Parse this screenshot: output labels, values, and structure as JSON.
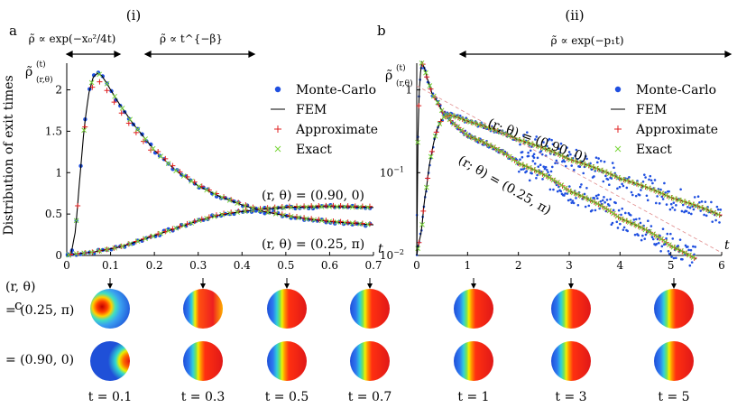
{
  "figure": {
    "panel_i": "(i)",
    "panel_ii": "(ii)",
    "label_a": "a",
    "label_b": "b",
    "label_c": "c",
    "regime_short": "ρ̃ ∝ exp(−x₀²/4t)",
    "regime_power": "ρ̃ ∝ t^{−β}",
    "regime_exp": "ρ̃ ∝ exp(−p₁t)",
    "ylabel_text": "Distribution of exit times",
    "ylabel_sym": "ρ̃",
    "ylabel_sup": "(t)",
    "ylabel_sub": "(r,θ)",
    "xlabel_t": "t",
    "annot_a1": "(r, θ) = (0.90, 0)",
    "annot_a2": "(r, θ) = (0.25, π)",
    "annot_b1": "(r; θ) = (0.90, 0)",
    "annot_b2": "(r; θ) = (0.25, π)",
    "row_header": "(r, θ)",
    "row1": "= (0.25, π)",
    "row2": "= (0.90, 0)"
  },
  "legend": {
    "items": [
      {
        "name": "Monte-Carlo",
        "color": "#1f4fe0",
        "marker": "dot"
      },
      {
        "name": "FEM",
        "color": "#000000",
        "marker": "line"
      },
      {
        "name": "Approximate",
        "color": "#e02020",
        "marker": "plus"
      },
      {
        "name": "Exact",
        "color": "#7ad63a",
        "marker": "cross"
      }
    ]
  },
  "chart_data": [
    {
      "type": "line",
      "title": "(i)",
      "xlabel": "t",
      "ylabel": "Distribution of exit times",
      "xlim": [
        0,
        0.7
      ],
      "ylim": [
        0,
        2.3
      ],
      "xticks": [
        "0",
        "0.1",
        "0.2",
        "0.3",
        "0.4",
        "0.5",
        "0.6",
        "0.7"
      ],
      "yticks": [
        "0",
        "0.5",
        "1",
        "1.5",
        "2"
      ],
      "series": [
        {
          "name": "(r, θ) = (0.90, 0)",
          "x": [
            0,
            0.02,
            0.04,
            0.06,
            0.08,
            0.1,
            0.12,
            0.15,
            0.2,
            0.25,
            0.3,
            0.35,
            0.4,
            0.45,
            0.5,
            0.55,
            0.6,
            0.65,
            0.7
          ],
          "values": [
            0,
            0.02,
            0.03,
            0.04,
            0.06,
            0.08,
            0.1,
            0.15,
            0.24,
            0.33,
            0.42,
            0.49,
            0.53,
            0.56,
            0.58,
            0.585,
            0.59,
            0.585,
            0.58
          ]
        },
        {
          "name": "(r, θ) = (0.25, π)",
          "x": [
            0,
            0.01,
            0.02,
            0.03,
            0.04,
            0.05,
            0.06,
            0.07,
            0.08,
            0.09,
            0.1,
            0.12,
            0.15,
            0.2,
            0.25,
            0.3,
            0.35,
            0.4,
            0.45,
            0.5,
            0.55,
            0.6,
            0.65,
            0.7
          ],
          "values": [
            0,
            0.02,
            0.3,
            0.95,
            1.55,
            1.95,
            2.15,
            2.2,
            2.17,
            2.09,
            2.0,
            1.83,
            1.6,
            1.27,
            1.02,
            0.84,
            0.71,
            0.61,
            0.53,
            0.48,
            0.44,
            0.41,
            0.39,
            0.37
          ]
        }
      ]
    },
    {
      "type": "line",
      "title": "(ii)",
      "xlabel": "t",
      "yscale": "log",
      "xlim": [
        0,
        6
      ],
      "ylim": [
        0.01,
        2
      ],
      "xticks": [
        "0",
        "1",
        "2",
        "3",
        "4",
        "5",
        "6"
      ],
      "yticks": [
        "10^-2",
        "10^-1",
        "1"
      ],
      "series": [
        {
          "name": "(r; θ) = (0.90, 0)",
          "x": [
            0,
            0.1,
            0.2,
            0.3,
            0.4,
            0.5,
            0.6,
            0.7,
            1,
            2,
            3,
            4,
            5,
            6
          ],
          "values": [
            0.01,
            0.02,
            0.07,
            0.18,
            0.33,
            0.45,
            0.5,
            0.49,
            0.42,
            0.25,
            0.145,
            0.085,
            0.05,
            0.03
          ]
        },
        {
          "name": "(r; θ) = (0.25, π)",
          "x": [
            0,
            0.03,
            0.06,
            0.1,
            0.15,
            0.2,
            0.3,
            0.5,
            0.7,
            1,
            2,
            3,
            4,
            5,
            5.5
          ],
          "values": [
            0.01,
            0.35,
            1.3,
            2.15,
            1.85,
            1.4,
            0.9,
            0.55,
            0.4,
            0.28,
            0.13,
            0.06,
            0.028,
            0.013,
            0.009
          ]
        }
      ]
    }
  ],
  "snapshots": {
    "labels": [
      "t = 0.1",
      "t = 0.3",
      "t = 0.5",
      "t = 0.7",
      "t = 1",
      "t = 3",
      "t = 5"
    ],
    "t_values": [
      0.1,
      0.3,
      0.5,
      0.7,
      1,
      3,
      5
    ]
  }
}
